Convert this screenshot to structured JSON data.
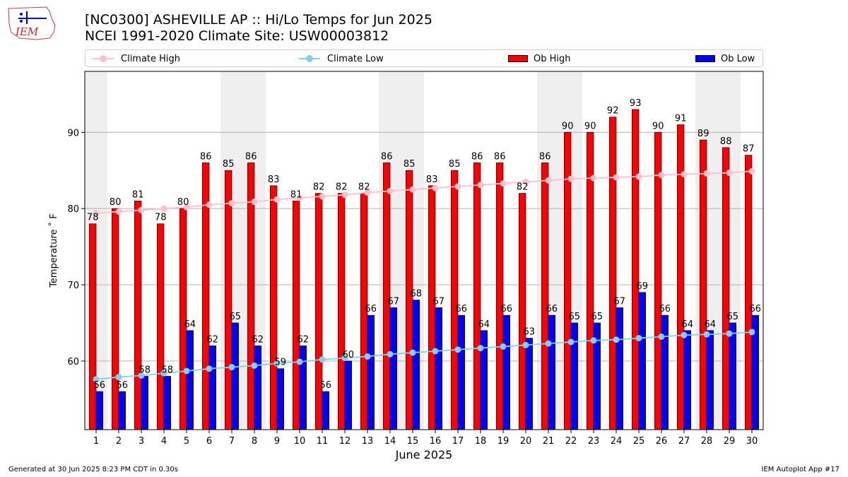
{
  "header": {
    "title_line1": "[NC0300] ASHEVILLE AP :: Hi/Lo Temps for Jun 2025",
    "title_line2": "NCEI 1991-2020 Climate Site: USW00003812",
    "logo_text": "IEM"
  },
  "legend": {
    "climate_high": "Climate High",
    "climate_low": "Climate Low",
    "ob_high": "Ob High",
    "ob_low": "Ob Low"
  },
  "colors": {
    "ob_high": "#ff0000",
    "ob_low": "#0000ff",
    "climate_high": "#ffc0cb",
    "climate_low": "#87ceeb",
    "weekend_shade": "#efefef"
  },
  "chart_data": {
    "type": "bar",
    "title": "[NC0300] ASHEVILLE AP :: Hi/Lo Temps for Jun 2025",
    "subtitle": "NCEI 1991-2020 Climate Site: USW00003812",
    "xlabel": "June 2025",
    "ylabel": "Temperature $^\\circ$F",
    "ylim": [
      51,
      98
    ],
    "yticks": [
      60,
      70,
      80,
      90
    ],
    "grid": true,
    "legend_position": "top",
    "categories": [
      "1",
      "2",
      "3",
      "4",
      "5",
      "6",
      "7",
      "8",
      "9",
      "10",
      "11",
      "12",
      "13",
      "14",
      "15",
      "16",
      "17",
      "18",
      "19",
      "20",
      "21",
      "22",
      "23",
      "24",
      "25",
      "26",
      "27",
      "28",
      "29",
      "30"
    ],
    "shaded_days": [
      1,
      7,
      8,
      14,
      15,
      21,
      22,
      28,
      29
    ],
    "series": [
      {
        "name": "Ob High",
        "kind": "bar",
        "values": [
          78,
          80,
          81,
          78,
          80,
          86,
          85,
          86,
          83,
          81,
          82,
          82,
          82,
          86,
          85,
          83,
          85,
          86,
          86,
          82,
          86,
          90,
          90,
          92,
          93,
          90,
          91,
          89,
          88,
          87
        ]
      },
      {
        "name": "Ob Low",
        "kind": "bar",
        "values": [
          56,
          56,
          58,
          58,
          64,
          62,
          65,
          62,
          59,
          62,
          56,
          60,
          66,
          67,
          68,
          67,
          66,
          64,
          66,
          63,
          66,
          65,
          65,
          67,
          69,
          66,
          64,
          64,
          65,
          66
        ]
      },
      {
        "name": "Climate High",
        "kind": "line",
        "values": [
          79.4,
          79.6,
          79.8,
          80.0,
          80.2,
          80.5,
          80.7,
          80.9,
          81.2,
          81.4,
          81.6,
          81.8,
          82.1,
          82.3,
          82.5,
          82.7,
          82.9,
          83.1,
          83.3,
          83.5,
          83.7,
          83.9,
          84.0,
          84.1,
          84.2,
          84.4,
          84.5,
          84.6,
          84.7,
          84.9
        ]
      },
      {
        "name": "Climate Low",
        "kind": "line",
        "values": [
          57.6,
          57.9,
          58.1,
          58.4,
          58.7,
          59.0,
          59.2,
          59.4,
          59.7,
          59.9,
          60.2,
          60.4,
          60.6,
          60.9,
          61.1,
          61.3,
          61.5,
          61.7,
          61.9,
          62.1,
          62.3,
          62.5,
          62.7,
          62.8,
          63.0,
          63.2,
          63.4,
          63.5,
          63.6,
          63.8
        ]
      }
    ]
  },
  "footer": {
    "generated": "Generated at 30 Jun 2025 8:23 PM CDT in 0.30s",
    "app": "IEM Autoplot App #17"
  }
}
